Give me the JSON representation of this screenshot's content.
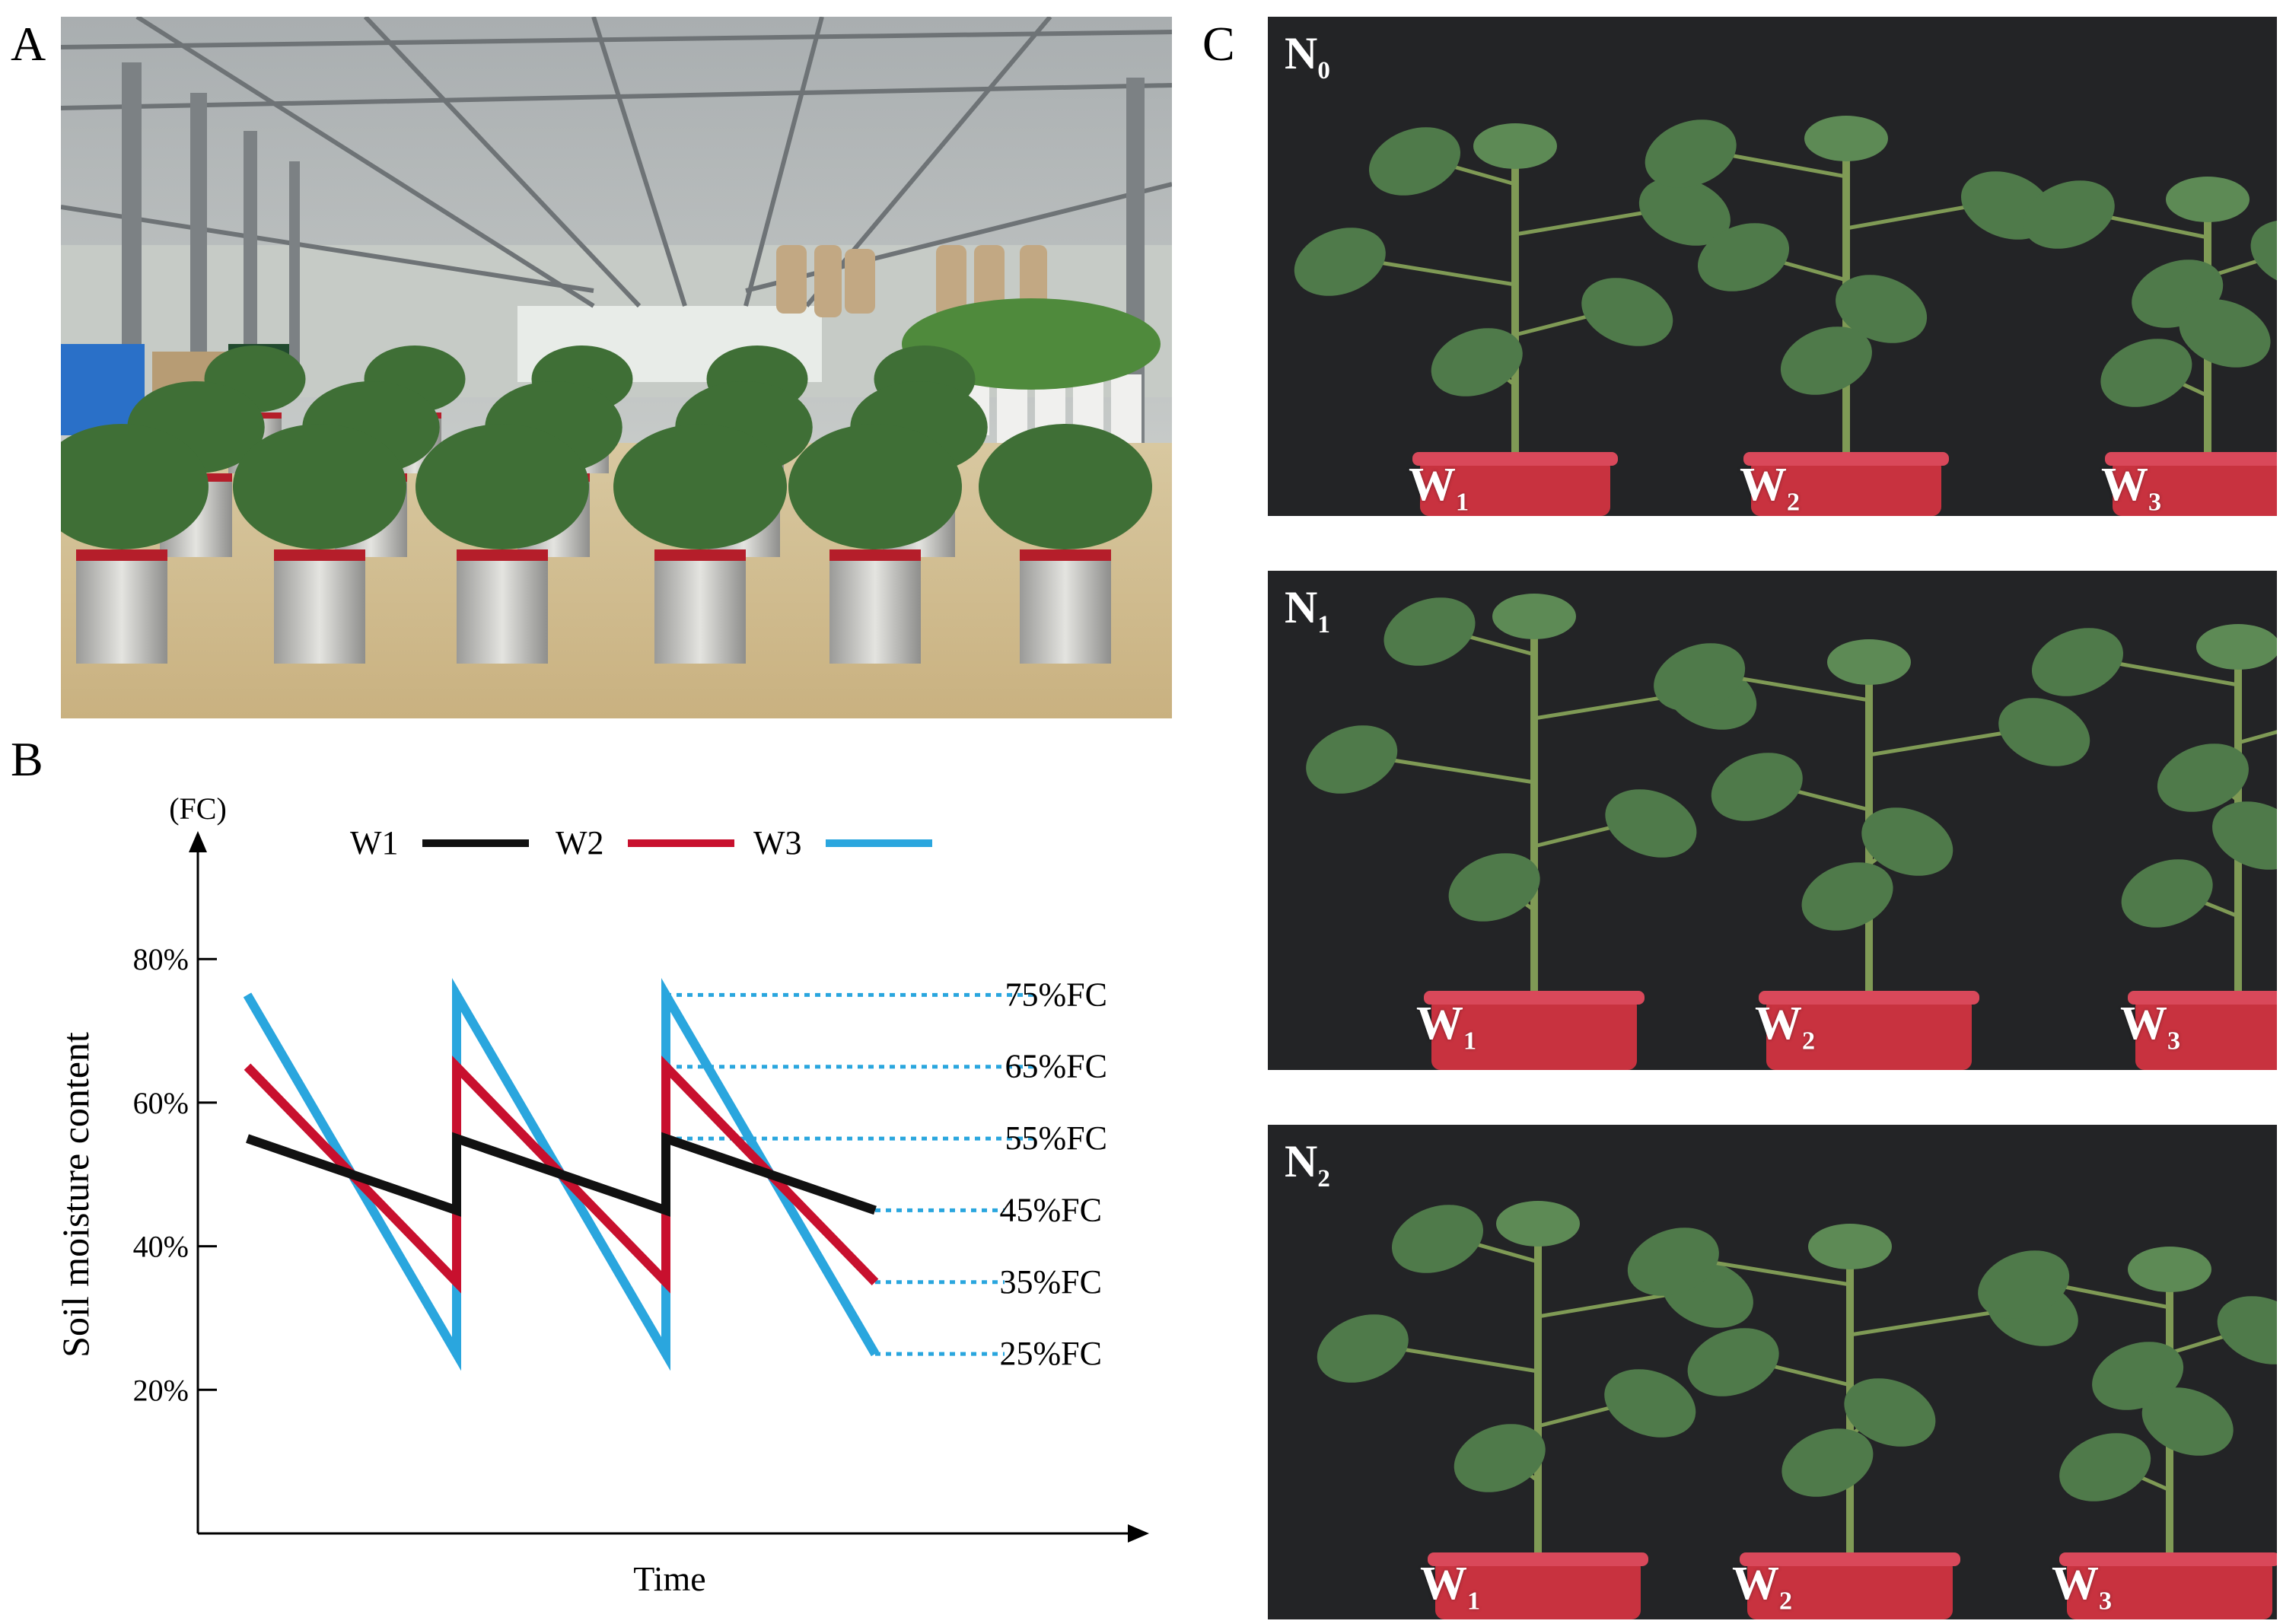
{
  "panel_labels": {
    "a": "A",
    "b": "B",
    "c": "C"
  },
  "panel_c": {
    "rows": [
      {
        "n_label": "N",
        "n_sub": "0",
        "w_labels": [
          {
            "base": "W",
            "sub": "1"
          },
          {
            "base": "W",
            "sub": "2"
          },
          {
            "base": "W",
            "sub": "3"
          }
        ]
      },
      {
        "n_label": "N",
        "n_sub": "1",
        "w_labels": [
          {
            "base": "W",
            "sub": "1"
          },
          {
            "base": "W",
            "sub": "2"
          },
          {
            "base": "W",
            "sub": "3"
          }
        ]
      },
      {
        "n_label": "N",
        "n_sub": "2",
        "w_labels": [
          {
            "base": "W",
            "sub": "1"
          },
          {
            "base": "W",
            "sub": "2"
          },
          {
            "base": "W",
            "sub": "3"
          }
        ]
      }
    ]
  },
  "colors": {
    "w1": "#111111",
    "w2": "#c8102e",
    "w3": "#2aa6de"
  },
  "chart_data": {
    "type": "line",
    "ylabel": "Soil moisture content",
    "yunit": "(FC)",
    "xlabel": "Time",
    "yticks": [
      "80%",
      "60%",
      "40%",
      "20%"
    ],
    "ylim": [
      0,
      95
    ],
    "legend": {
      "placement": "top",
      "entries": [
        "W1",
        "W2",
        "W3"
      ]
    },
    "series": [
      {
        "name": "W1",
        "x": [
          0,
          1,
          1,
          2,
          2,
          3
        ],
        "values": [
          55,
          45,
          55,
          45,
          55,
          45
        ]
      },
      {
        "name": "W2",
        "x": [
          0,
          1,
          1,
          2,
          2,
          3
        ],
        "values": [
          65,
          35,
          65,
          35,
          65,
          35
        ]
      },
      {
        "name": "W3",
        "x": [
          0,
          1,
          1,
          2,
          2,
          3
        ],
        "values": [
          75,
          25,
          75,
          25,
          75,
          25
        ]
      }
    ],
    "annotations": [
      "75%FC",
      "65%FC",
      "55%FC",
      "45%FC",
      "35%FC",
      "25%FC"
    ]
  }
}
